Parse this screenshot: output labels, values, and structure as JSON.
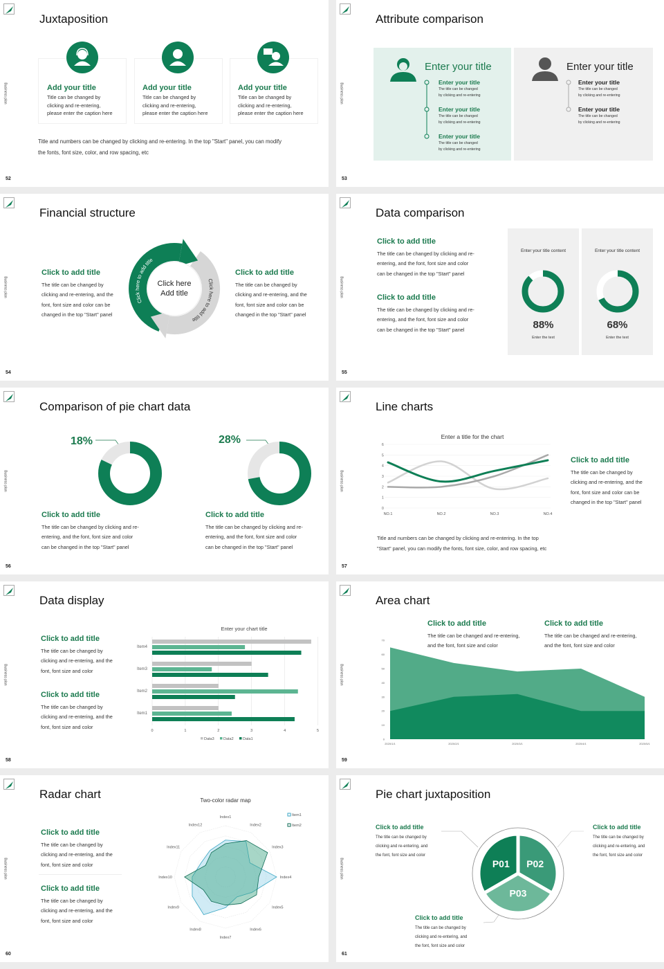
{
  "common": {
    "side_label": "Business plan",
    "logo": "leaf-logo-icon"
  },
  "colors": {
    "green": "#0e7f56",
    "heading_green": "#1b7a4e",
    "light_green_panel": "#e3f1ec",
    "gray_panel": "#f0f0f0"
  },
  "s52": {
    "page": "52",
    "title": "Juxtaposition",
    "cards": [
      {
        "icon": "headset-person-icon",
        "title": "Add your title",
        "text": "Title can be changed by\nclicking and re-entering,\nplease enter the caption here"
      },
      {
        "icon": "person-icon",
        "title": "Add your title",
        "text": "Title can be changed by\nclicking and re-entering,\nplease enter the caption here"
      },
      {
        "icon": "presenter-chat-icon",
        "title": "Add your title",
        "text": "Title can be changed by\nclicking and re-entering,\nplease enter the caption here"
      }
    ],
    "footer": "Title and numbers can be changed by clicking and re-entering. In the top \"Start\" panel, you can modify\nthe fonts, font size, color, and row spacing, etc"
  },
  "s53": {
    "page": "53",
    "title": "Attribute comparison",
    "left": {
      "heading": "Enter your title",
      "items": [
        {
          "title": "Enter your title",
          "text": "The title can be changed\nby clicking and re-entering"
        },
        {
          "title": "Enter your title",
          "text": "The title can be changed\nby clicking and re-entering"
        },
        {
          "title": "Enter your title",
          "text": "The title can be changed\nby clicking and re-entering"
        }
      ]
    },
    "right": {
      "heading": "Enter your title",
      "items": [
        {
          "title": "Enter your title",
          "text": "The title can be changed\nby clicking and re-entering"
        },
        {
          "title": "Enter your title",
          "text": "The title can be changed\nby clicking and re-entering"
        }
      ]
    }
  },
  "s54": {
    "page": "54",
    "title": "Financial structure",
    "left": {
      "heading": "Click to add title",
      "text": "The title can be changed by\nclicking and re-entering, and the\nfont, font size and color can be\nchanged in the top \"Start\" panel"
    },
    "right": {
      "heading": "Click to add title",
      "text": "The title can be changed by\nclicking and re-entering, and the\nfont, font size and color can be\nchanged in the top \"Start\" panel"
    },
    "center": "Click here\nAdd title",
    "arc_left": "Click here to add title",
    "arc_right": "Click here to add title"
  },
  "s55": {
    "page": "55",
    "title": "Data comparison",
    "blocks": [
      {
        "heading": "Click to add title",
        "text": "The title can be changed by clicking and re-\nentering, and the font, font size and color\ncan be changed in the top \"Start\" panel"
      },
      {
        "heading": "Click to add title",
        "text": "The title can be changed by clicking and re-\nentering, and the font, font size and color\ncan be changed in the top \"Start\" panel"
      }
    ],
    "panels": [
      {
        "title": "Enter your title content",
        "percent": "88%",
        "caption": "Enter the text"
      },
      {
        "title": "Enter your title content",
        "percent": "68%",
        "caption": "Enter the text"
      }
    ]
  },
  "s56": {
    "page": "56",
    "title": "Comparison of pie chart data",
    "charts": [
      {
        "label": "18%",
        "heading": "Click to add title",
        "text": "The title can be changed by clicking and re-\nentering, and the font, font size and color\ncan be changed in the top \"Start\" panel"
      },
      {
        "label": "28%",
        "heading": "Click to add title",
        "text": "The title can be changed by clicking and re-\nentering, and the font, font size and color\ncan be changed in the top \"Start\" panel"
      }
    ]
  },
  "s57": {
    "page": "57",
    "title": "Line charts",
    "heading": "Click to add title",
    "text": "The title can be changed by\nclicking and re-entering, and the\nfont, font size and color can be\nchanged in the top \"Start\" panel",
    "footer": "Title and numbers can be changed by clicking and re-entering. In the top\n\"Start\" panel, you can modify the fonts, font size, color, and row spacing, etc"
  },
  "s58": {
    "page": "58",
    "title": "Data display",
    "blocks": [
      {
        "heading": "Click to add title",
        "text": "The title can be changed by\nclicking and re-entering, and the\nfont, font size and color"
      },
      {
        "heading": "Click to add title",
        "text": "The title can be changed by\nclicking and re-entering, and the\nfont, font size and color"
      }
    ]
  },
  "s59": {
    "page": "59",
    "title": "Area chart",
    "blocks": [
      {
        "heading": "Click to add title",
        "text": "The title can be changed and re-entering,\nand the font, font size and color"
      },
      {
        "heading": "Click to add title",
        "text": "The title can be changed and re-entering,\nand the font, font size and color"
      }
    ]
  },
  "s60": {
    "page": "60",
    "title": "Radar chart",
    "blocks": [
      {
        "heading": "Click to add title",
        "text": "The title can be changed by\nclicking and re-entering, and the\nfont, font size and color"
      },
      {
        "heading": "Click to add title",
        "text": "The title can be changed by\nclicking and re-entering, and the\nfont, font size and color"
      }
    ]
  },
  "s61": {
    "page": "61",
    "title": "Pie chart juxtaposition",
    "blocks": [
      {
        "heading": "Click to add title",
        "text": "The title can be changed by\nclicking and re-entering, and\nthe font, font size and color"
      },
      {
        "heading": "Click to add title",
        "text": "The title can be changed by\nclicking and re-entering, and\nthe font, font size and color"
      },
      {
        "heading": "Click to add title",
        "text": "The title can be changed by\nclicking and re-entering, and\nthe font, font size and color"
      }
    ]
  },
  "chart_data": [
    {
      "type": "pie",
      "variant": "donut",
      "values_percent": [
        88,
        68
      ],
      "labels": [
        "88%",
        "68%"
      ],
      "colors": [
        "#0e7f56",
        "#ffffff"
      ]
    },
    {
      "type": "pie",
      "variant": "donut",
      "highlight_percent": [
        18,
        28
      ],
      "labels": [
        "18%",
        "28%"
      ],
      "colors": [
        "#0e7f56",
        "#e6e6e6"
      ]
    },
    {
      "type": "line",
      "title": "Enter a title for the chart",
      "categories": [
        "NO.1",
        "NO.2",
        "NO.3",
        "NO.4"
      ],
      "ylim": [
        0,
        6
      ],
      "yticks": [
        0,
        1,
        2,
        3,
        4,
        5,
        6
      ],
      "grid": true,
      "series": [
        {
          "values": [
            2.4,
            4.4,
            1.8,
            2.8
          ],
          "color": "#d2d2d2"
        },
        {
          "values": [
            2,
            2,
            3,
            5
          ],
          "color": "#a9a9a9"
        },
        {
          "values": [
            4.3,
            2.5,
            3.5,
            4.5
          ],
          "color": "#0e7f56"
        }
      ]
    },
    {
      "type": "bar",
      "orientation": "horizontal",
      "title": "Enter your chart title",
      "categories": [
        "Item1",
        "Item2",
        "Item3",
        "Item4"
      ],
      "xlim": [
        0,
        5
      ],
      "xticks": [
        0,
        1,
        2,
        3,
        4,
        5
      ],
      "legend": "bottom",
      "series": [
        {
          "name": "Data3",
          "values": [
            2,
            2,
            3,
            4.8
          ],
          "color": "#c2c2c2"
        },
        {
          "name": "Data2",
          "values": [
            2.4,
            4.4,
            1.8,
            2.8
          ],
          "color": "#5cb592"
        },
        {
          "name": "Data1",
          "values": [
            4.3,
            2.5,
            3.5,
            4.5
          ],
          "color": "#0e7f56"
        }
      ]
    },
    {
      "type": "area",
      "categories": [
        "2020/1/1",
        "2020/2/1",
        "2020/3/1",
        "2020/4/1",
        "2020/5/1"
      ],
      "ylim": [
        0,
        70
      ],
      "yticks": [
        0,
        10,
        20,
        30,
        40,
        50,
        60,
        70
      ],
      "series": [
        {
          "values": [
            65,
            54,
            48,
            50,
            30
          ],
          "color": "#52ab88"
        },
        {
          "values": [
            20,
            30,
            32,
            20,
            20
          ],
          "color": "#118a5e"
        }
      ]
    },
    {
      "type": "radar",
      "title": "Two-color radar map",
      "categories": [
        "Index1",
        "Index2",
        "Index3",
        "Index4",
        "Index5",
        "Index6",
        "Index7",
        "Index8",
        "Index9",
        "Index10",
        "Index11",
        "Index12"
      ],
      "rmax": 10,
      "legend": "top-right",
      "series": [
        {
          "name": "Item1",
          "values": [
            7.2,
            8,
            5.5,
            10,
            6,
            4.5,
            6,
            8.5,
            7.5,
            6.5,
            5.5,
            6
          ],
          "color": "#3aa6c4"
        },
        {
          "name": "Item2",
          "values": [
            6.5,
            8.2,
            9.5,
            6.5,
            7,
            6,
            5.5,
            5.5,
            5,
            8,
            4.5,
            5.5
          ],
          "color": "#0e6b55"
        }
      ]
    },
    {
      "type": "pie",
      "labels": [
        "P01",
        "P02",
        "P03"
      ],
      "values": [
        1,
        1,
        1
      ],
      "colors": [
        "#0e7f56",
        "#3a9a78",
        "#6db89a"
      ]
    }
  ]
}
